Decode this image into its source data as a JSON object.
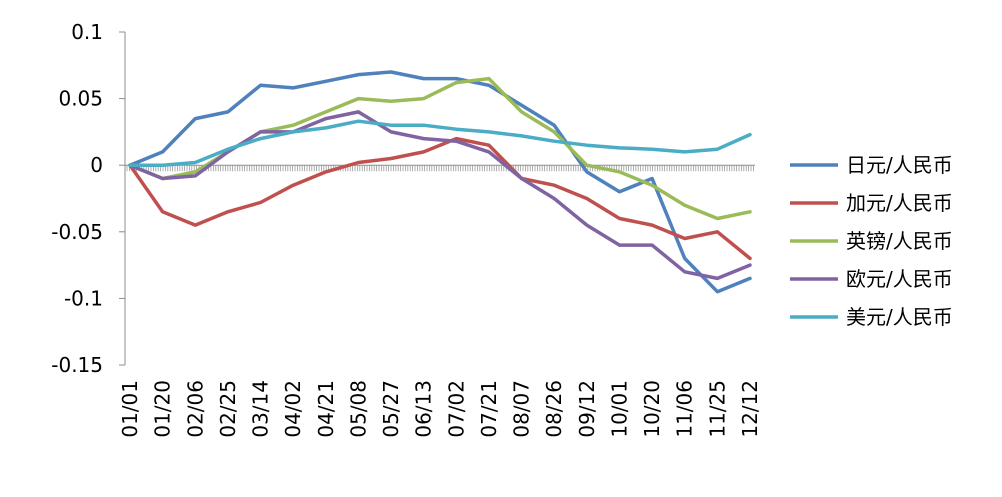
{
  "chart_data": {
    "type": "line",
    "title": "",
    "xlabel": "",
    "ylabel": "",
    "ylim": [
      -0.15,
      0.1
    ],
    "yticks": [
      0.1,
      0.05,
      0,
      -0.05,
      -0.1,
      -0.15
    ],
    "ytick_labels": [
      "0.1",
      "0.05",
      "0",
      "-0.05",
      "-0.1",
      "-0.15"
    ],
    "x_tick_labels": [
      "01/01",
      "01/20",
      "02/06",
      "02/25",
      "03/14",
      "04/02",
      "04/21",
      "05/08",
      "05/27",
      "06/13",
      "07/02",
      "07/21",
      "08/07",
      "08/26",
      "09/12",
      "10/01",
      "10/20",
      "11/06",
      "11/25",
      "12/12"
    ],
    "legend_position": "right",
    "grid": false,
    "series": [
      {
        "name": "日元/人民币",
        "color": "#4f81bd",
        "x": [
          "01/01",
          "01/20",
          "02/06",
          "02/25",
          "03/14",
          "04/02",
          "04/21",
          "05/08",
          "05/27",
          "06/13",
          "07/02",
          "07/21",
          "08/07",
          "08/26",
          "09/12",
          "10/01",
          "10/20",
          "11/06",
          "11/25",
          "12/12"
        ],
        "values": [
          0.0,
          0.01,
          0.035,
          0.04,
          0.06,
          0.058,
          0.063,
          0.068,
          0.07,
          0.065,
          0.065,
          0.06,
          0.045,
          0.03,
          -0.005,
          -0.02,
          -0.01,
          -0.07,
          -0.095,
          -0.085
        ]
      },
      {
        "name": "加元/人民币",
        "color": "#c0504d",
        "x": [
          "01/01",
          "01/20",
          "02/06",
          "02/25",
          "03/14",
          "04/02",
          "04/21",
          "05/08",
          "05/27",
          "06/13",
          "07/02",
          "07/21",
          "08/07",
          "08/26",
          "09/12",
          "10/01",
          "10/20",
          "11/06",
          "11/25",
          "12/12"
        ],
        "values": [
          0.0,
          -0.035,
          -0.045,
          -0.035,
          -0.028,
          -0.015,
          -0.005,
          0.002,
          0.005,
          0.01,
          0.02,
          0.015,
          -0.01,
          -0.015,
          -0.025,
          -0.04,
          -0.045,
          -0.055,
          -0.05,
          -0.07
        ]
      },
      {
        "name": "英镑/人民币",
        "color": "#9bbb59",
        "x": [
          "01/01",
          "01/20",
          "02/06",
          "02/25",
          "03/14",
          "04/02",
          "04/21",
          "05/08",
          "05/27",
          "06/13",
          "07/02",
          "07/21",
          "08/07",
          "08/26",
          "09/12",
          "10/01",
          "10/20",
          "11/06",
          "11/25",
          "12/12"
        ],
        "values": [
          0.0,
          -0.01,
          -0.005,
          0.01,
          0.025,
          0.03,
          0.04,
          0.05,
          0.048,
          0.05,
          0.062,
          0.065,
          0.04,
          0.025,
          0.0,
          -0.005,
          -0.015,
          -0.03,
          -0.04,
          -0.035
        ]
      },
      {
        "name": "欧元/人民币",
        "color": "#8064a2",
        "x": [
          "01/01",
          "01/20",
          "02/06",
          "02/25",
          "03/14",
          "04/02",
          "04/21",
          "05/08",
          "05/27",
          "06/13",
          "07/02",
          "07/21",
          "08/07",
          "08/26",
          "09/12",
          "10/01",
          "10/20",
          "11/06",
          "11/25",
          "12/12"
        ],
        "values": [
          0.0,
          -0.01,
          -0.008,
          0.01,
          0.025,
          0.025,
          0.035,
          0.04,
          0.025,
          0.02,
          0.018,
          0.01,
          -0.01,
          -0.025,
          -0.045,
          -0.06,
          -0.06,
          -0.08,
          -0.085,
          -0.075
        ]
      },
      {
        "name": "美元/人民币",
        "color": "#4bacc6",
        "x": [
          "01/01",
          "01/20",
          "02/06",
          "02/25",
          "03/14",
          "04/02",
          "04/21",
          "05/08",
          "05/27",
          "06/13",
          "07/02",
          "07/21",
          "08/07",
          "08/26",
          "09/12",
          "10/01",
          "10/20",
          "11/06",
          "11/25",
          "12/12"
        ],
        "values": [
          0.0,
          0.0,
          0.002,
          0.012,
          0.02,
          0.025,
          0.028,
          0.033,
          0.03,
          0.03,
          0.027,
          0.025,
          0.022,
          0.018,
          0.015,
          0.013,
          0.012,
          0.01,
          0.012,
          0.023
        ]
      }
    ]
  }
}
